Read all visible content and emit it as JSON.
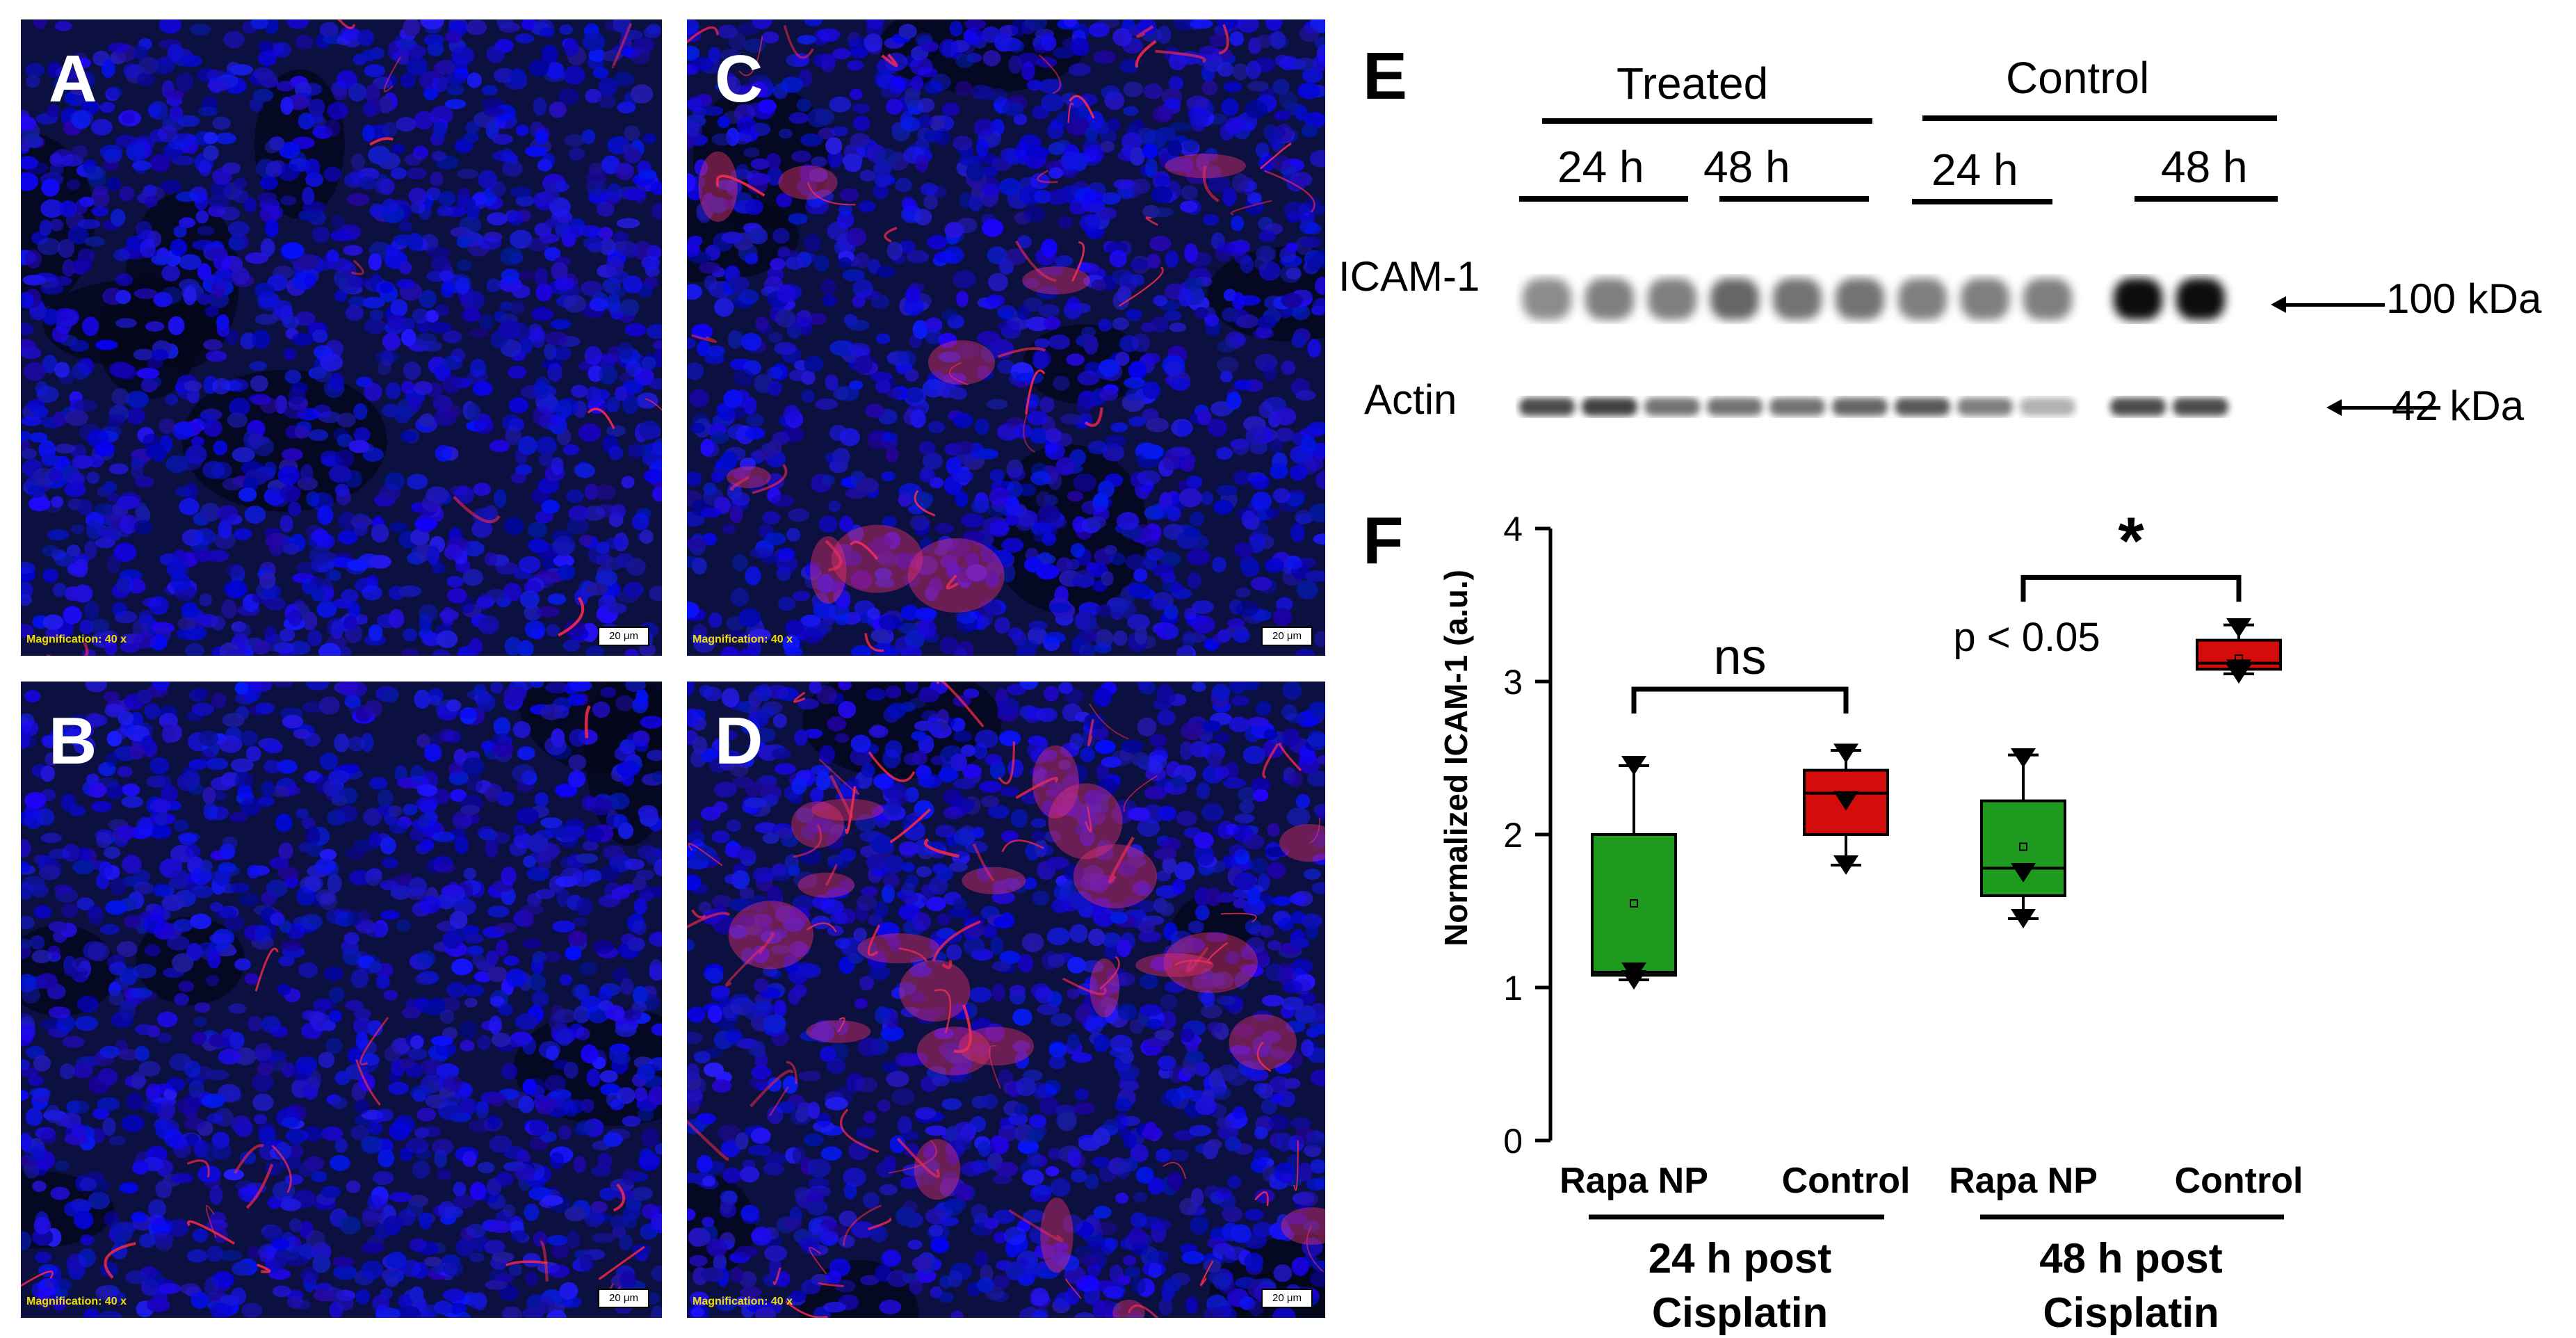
{
  "panels": {
    "A": {
      "label": "A",
      "magnification": "Magnification:  40 x",
      "scalebar": "20 μm"
    },
    "B": {
      "label": "B",
      "magnification": "Magnification:  40 x",
      "scalebar": "20 μm"
    },
    "C": {
      "label": "C",
      "magnification": "Magnification:  40 x",
      "scalebar": "20 μm"
    },
    "D": {
      "label": "D",
      "magnification": "Magnification:  40 x",
      "scalebar": "20 μm"
    }
  },
  "blot": {
    "label": "E",
    "group_treated": "Treated",
    "group_control": "Control",
    "time_treated_24": "24 h",
    "time_treated_48": "48 h",
    "time_control_24": "24 h",
    "time_control_48": "48 h",
    "row_icam": "ICAM-1",
    "row_actin": "Actin",
    "marker_icam": "100 kDa",
    "marker_actin": "42 kDa"
  },
  "chart_data": {
    "label": "F",
    "type": "box",
    "ylabel": "Normalized ICAM-1 (a.u.)",
    "ylim": [
      0,
      4
    ],
    "yticks": [
      "0",
      "1",
      "2",
      "3",
      "4"
    ],
    "categories": [
      "Rapa NP",
      "Control",
      "Rapa NP",
      "Control"
    ],
    "group_labels": [
      {
        "line1": "24 h post",
        "line2": "Cisplatin"
      },
      {
        "line1": "48 h post",
        "line2": "Cisplatin"
      }
    ],
    "boxes": [
      {
        "category": "Rapa NP",
        "group": "24 h",
        "color": "#1e9a1e",
        "whisker_low": 1.05,
        "q1": 1.08,
        "median": 1.1,
        "q3": 2.0,
        "whisker_high": 2.45,
        "mean": 1.55,
        "points": [
          1.05,
          1.1,
          2.45
        ]
      },
      {
        "category": "Control",
        "group": "24 h",
        "color": "#d40c0c",
        "whisker_low": 1.8,
        "q1": 2.0,
        "median": 2.27,
        "q3": 2.42,
        "whisker_high": 2.55,
        "mean": 2.22,
        "points": [
          1.8,
          2.22,
          2.53
        ]
      },
      {
        "category": "Rapa NP",
        "group": "48 h",
        "color": "#1e9a1e",
        "whisker_low": 1.45,
        "q1": 1.6,
        "median": 1.78,
        "q3": 2.22,
        "whisker_high": 2.52,
        "mean": 1.92,
        "points": [
          1.45,
          1.75,
          2.5
        ]
      },
      {
        "category": "Control",
        "group": "48 h",
        "color": "#d40c0c",
        "whisker_low": 3.05,
        "q1": 3.08,
        "median": 3.12,
        "q3": 3.27,
        "whisker_high": 3.37,
        "mean": 3.15,
        "points": [
          3.05,
          3.08,
          3.35
        ]
      }
    ],
    "annotations": {
      "ns": "ns",
      "star": "*",
      "pvalue": "p < 0.05"
    }
  }
}
